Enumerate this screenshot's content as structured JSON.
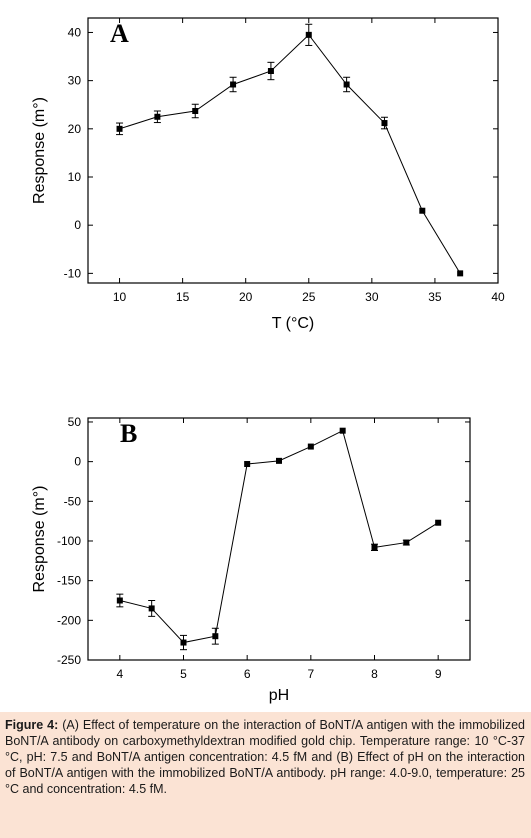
{
  "chart_data": [
    {
      "type": "line",
      "panel_label": "A",
      "xlabel": "T (°C)",
      "ylabel": "Response (m°)",
      "xlim": [
        7.5,
        40
      ],
      "ylim": [
        -12,
        43
      ],
      "xticks": [
        10,
        15,
        20,
        25,
        30,
        35,
        40
      ],
      "yticks": [
        -10,
        0,
        10,
        20,
        30,
        40
      ],
      "x": [
        10,
        13,
        16,
        19,
        22,
        25,
        28,
        31,
        34,
        37
      ],
      "y": [
        20,
        22.5,
        23.7,
        29.2,
        32,
        39.5,
        29.2,
        21.2,
        3,
        -10
      ],
      "error": [
        1.2,
        1.2,
        1.4,
        1.5,
        1.8,
        2.2,
        1.5,
        1.2,
        0,
        0
      ]
    },
    {
      "type": "line",
      "panel_label": "B",
      "xlabel": "pH",
      "ylabel": "Response (m°)",
      "xlim": [
        3.5,
        9.5
      ],
      "ylim": [
        -250,
        55
      ],
      "xticks": [
        4,
        5,
        6,
        7,
        8,
        9
      ],
      "yticks": [
        -250,
        -200,
        -150,
        -100,
        -50,
        0,
        50
      ],
      "x": [
        4.0,
        4.5,
        5.0,
        5.5,
        6.0,
        6.5,
        7.0,
        7.5,
        8.0,
        8.5,
        9.0
      ],
      "y": [
        -175,
        -185,
        -228,
        -220,
        -3,
        1,
        19,
        39,
        -108,
        -102,
        -77
      ],
      "error": [
        8,
        10,
        9,
        10,
        0,
        0,
        0,
        0,
        4,
        3,
        0
      ]
    }
  ],
  "caption": {
    "figure_label": "Figure 4:",
    "text": " (A) Effect of temperature on the interaction of BoNT/A antigen with the immobilized BoNT/A antibody on carboxymethyldextran modified gold chip. Temperature range: 10 °C-37 °C, pH: 7.5 and BoNT/A antigen concentration: 4.5 fM and (B) Effect of pH on the interaction of BoNT/A antigen with the immobilized BoNT/A antibody. pH range: 4.0-9.0, temperature: 25 °C and concentration: 4.5 fM."
  }
}
